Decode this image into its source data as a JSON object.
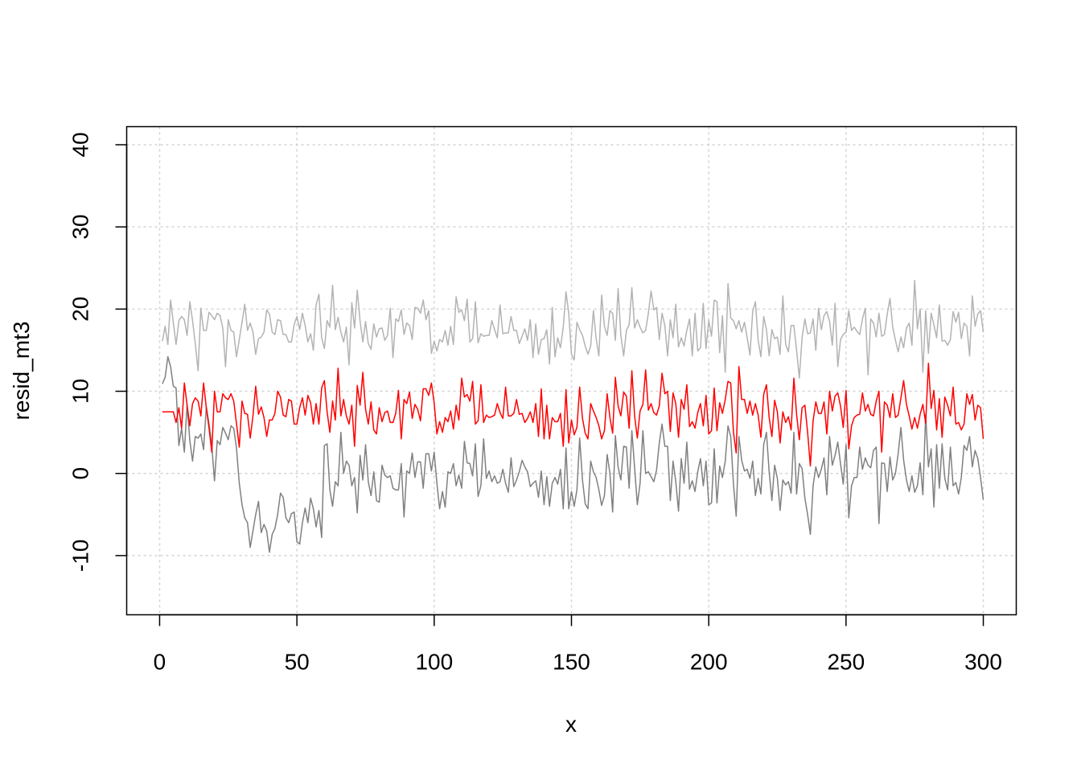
{
  "chart_data": {
    "type": "line",
    "title": "",
    "xlabel": "x",
    "ylabel": "resid_mt3",
    "xlim": [
      0,
      300
    ],
    "ylim": [
      -15,
      40
    ],
    "xticks": [
      0,
      50,
      100,
      150,
      200,
      250,
      300
    ],
    "yticks": [
      -10,
      0,
      10,
      20,
      30,
      40
    ],
    "grid": true,
    "legend": "none",
    "series": [
      {
        "color": "#b3b3b3",
        "values": [
          16.1,
          17.9,
          15.7,
          21.1,
          18.3,
          15.7,
          18.6,
          19.1,
          18.7,
          16.8,
          20.9,
          18.6,
          15.8,
          12.5,
          20.1,
          17.4,
          17.4,
          19.6,
          19.2,
          18.7,
          19.5,
          19.2,
          17.7,
          13,
          18.7,
          17.4,
          17.2,
          14.2,
          16.3,
          18.4,
          20.6,
          17.4,
          18.3,
          17.2,
          14.5,
          16.4,
          16.6,
          17.2,
          19.9,
          19.4,
          17.2,
          16.9,
          18.7,
          18.6,
          16.9,
          16.9,
          16,
          16,
          18.1,
          19.1,
          17.5,
          19.5,
          18,
          16,
          17,
          15,
          20.5,
          21.8,
          16.5,
          15.2,
          18.6,
          17.8,
          22.9,
          17.5,
          19,
          17.2,
          16,
          17.8,
          13.2,
          20.8,
          17.7,
          22.3,
          18.5,
          16,
          18.5,
          15.8,
          15.1,
          18.2,
          16.6,
          17.6,
          17.7,
          16.2,
          16.8,
          20.1,
          14.1,
          18.8,
          18.5,
          19.9,
          16.9,
          18.3,
          18,
          16.3,
          20.2,
          20.1,
          19.5,
          21.1,
          18.7,
          19.8,
          14.6,
          16.1,
          14.9,
          16.3,
          16,
          17.4,
          15.6,
          17.9,
          15.7,
          21.5,
          19.6,
          19.9,
          18.6,
          21.2,
          16,
          16.4,
          20.9,
          15.9,
          17,
          16.7,
          16.8,
          16.8,
          18.6,
          17.5,
          16.5,
          20.5,
          17,
          17.1,
          17.1,
          19.1,
          17.4,
          17.4,
          15.8,
          16.7,
          17.6,
          16.2,
          18.7,
          14.1,
          18.2,
          14.5,
          16.3,
          16.4,
          17.5,
          13.3,
          20.2,
          14.2,
          16.5,
          15.3,
          17.8,
          22.1,
          19.5,
          14.5,
          13.8,
          18.4,
          17.5,
          16.8,
          15.5,
          14.5,
          15.5,
          19.8,
          16.4,
          14.3,
          21.7,
          17.9,
          16.8,
          19.8,
          19.5,
          16.2,
          22.5,
          16.8,
          14.3,
          17.4,
          18.1,
          22.6,
          17.7,
          18.7,
          17.8,
          17.1,
          17.4,
          19.5,
          22.2,
          19.9,
          20.2,
          16.3,
          19.5,
          18,
          14.3,
          18.7,
          16.5,
          20.6,
          15.4,
          16.5,
          15.5,
          17.4,
          18.8,
          14.3,
          19.5,
          14.9,
          15.3,
          20.7,
          15.2,
          18.6,
          16.7,
          21.1,
          20.9,
          14.7,
          19.2,
          12.3,
          23.1,
          18.9,
          18.6,
          17.6,
          18.6,
          17.2,
          18.4,
          16.5,
          14.4,
          19.7,
          20.9,
          16.2,
          14.2,
          19.1,
          17.5,
          14.3,
          17.5,
          16.4,
          16.6,
          14.5,
          21.6,
          15.7,
          14.8,
          18,
          18,
          15,
          11.6,
          16.5,
          18.8,
          17,
          17.1,
          18.8,
          15,
          20.1,
          17.5,
          19.2,
          19.7,
          18.5,
          15.6,
          20.7,
          13,
          16.3,
          16.9,
          17.2,
          19.8,
          17.4,
          17.8,
          17.3,
          16.9,
          18.8,
          20.1,
          12,
          18.8,
          18.3,
          16.6,
          19.5,
          16.7,
          16.9,
          19.4,
          21.3,
          17.8,
          16.2,
          14.8,
          16.6,
          15.3,
          17.7,
          18.3,
          15.6,
          23.5,
          17.6,
          20,
          12.3,
          19.8,
          14.6,
          19.5,
          18.1,
          16.5,
          20.5,
          16.1,
          16.2,
          15.6,
          16.3,
          19.7,
          18.4,
          19.6,
          16.4,
          18.3,
          17.9,
          14.3,
          21.6,
          17.9,
          19.4,
          19.8,
          17.2
        ]
      },
      {
        "color": "#808080",
        "values": [
          10.9,
          11.7,
          14.2,
          13,
          10.6,
          10.4,
          3.4,
          5.5,
          2.6,
          8.4,
          4.0,
          1.5,
          4.5,
          4.3,
          4.8,
          2.9,
          8.1,
          6.0,
          3.4,
          -0.9,
          4.0,
          3.5,
          5.6,
          4.9,
          4.1,
          5.8,
          5.5,
          3.1,
          -1.2,
          -3.8,
          -5.4,
          -6.0,
          -9.0,
          -7.0,
          -5.0,
          -3.4,
          -7.2,
          -6.2,
          -7.0,
          -9.6,
          -7.4,
          -6.7,
          -5.0,
          -2.4,
          -2.9,
          -5.4,
          -6.0,
          -4.9,
          -4.7,
          -8.3,
          -8.6,
          -6,
          -4.2,
          -6,
          -3,
          -4.3,
          -6.5,
          -4.5,
          -7.8,
          3.4,
          3.6,
          -2,
          -4,
          -1,
          -1.5,
          5,
          0,
          1.5,
          1,
          -1.5,
          -0.5,
          -4.8,
          2.2,
          -0.8,
          3.5,
          -1,
          -2.7,
          0.2,
          -3.3,
          -3.5,
          1,
          -0.2,
          -0.5,
          -0.3,
          -1.8,
          -2,
          -2,
          1.2,
          -5.3,
          0.3,
          0,
          2.5,
          -0.5,
          1.4,
          1.4,
          -1.8,
          2.4,
          2.4,
          0.3,
          2.6,
          -1.2,
          -4.3,
          -2.2,
          -4.1,
          0.2,
          0,
          1.2,
          -1.5,
          -0.2,
          -1.8,
          3.9,
          1.3,
          1.2,
          -0.3,
          3.6,
          -2.8,
          -1.5,
          4.2,
          -0.6,
          0.3,
          -1,
          -0.3,
          -1.2,
          -1,
          0.5,
          -1.2,
          -2.3,
          1.9,
          -1.6,
          -0.8,
          0.2,
          1.6,
          0.8,
          0.2,
          -1.6,
          -1.2,
          -0.9,
          -2.9,
          0.3,
          -3.8,
          -0.4,
          -4,
          -1.2,
          -0.5,
          -1.3,
          0.5,
          -4.3,
          3.1,
          -4.3,
          -2.2,
          -4,
          -2,
          4.3,
          -0.8,
          -3.7,
          -4.3,
          1.5,
          0.2,
          -0.5,
          -2,
          -3.9,
          -2.7,
          2.3,
          0,
          -4.7,
          4.6,
          0.8,
          -0.8,
          3.3,
          3.2,
          -1.8,
          5.2,
          0.7,
          -3.8,
          -1.2,
          5.2,
          0,
          0.2,
          -0.4,
          -1,
          0.4,
          3.7,
          6,
          3.3,
          3.3,
          -3.3,
          1.5,
          -1,
          -4.6,
          1.8,
          -1.2,
          3.8,
          -1.9,
          -0.9,
          -2.2,
          0.2,
          1.8,
          -1.5,
          1.5,
          -3.8,
          -3.6,
          3,
          -3.6,
          0.9,
          -0.5,
          1.5,
          5.8,
          4.5,
          -1.3,
          -5.2,
          4.5,
          1.6,
          0.3,
          0.5,
          -0.6,
          1.5,
          -2.7,
          -0.6,
          -2.5,
          3.5,
          5,
          0.2,
          -3.3,
          1,
          -0.6,
          -4.5,
          -0.8,
          -1.4,
          -1,
          -2.4,
          5,
          -2.5,
          1.2,
          0.6,
          -3,
          -5,
          -7.4,
          -1.5,
          0.8,
          -0.5,
          0.5,
          1.9,
          -2.6,
          4.5,
          1,
          2.2,
          3.8,
          1.2,
          -1.3,
          3.5,
          -5.4,
          -1.5,
          -0.5,
          -0.5,
          3.2,
          0.5,
          1.9,
          1,
          0.7,
          2.8,
          3.2,
          -6.1,
          1.3,
          1.2,
          -2.2,
          2,
          -0.8,
          0,
          2.4,
          5.6,
          1.6,
          -0.8,
          -2.2,
          -0.3,
          -2.3,
          -1.5,
          1.3,
          -2.6,
          7.2,
          0.8,
          3,
          -4.1,
          3.5,
          -1.8,
          3.6,
          -0.6,
          -2,
          3.2,
          -1.5,
          -1.1,
          -2.5,
          -0.5,
          3.4,
          2.8,
          4.5,
          0.8,
          2.8,
          1.8,
          -0.5,
          -3.2
        ]
      },
      {
        "color": "#ff0000",
        "values": [
          7.5,
          7.5,
          7.5,
          7.5,
          7.5,
          6.2,
          8,
          5.5,
          11,
          8.3,
          5.8,
          8.5,
          9.2,
          8.8,
          7,
          11,
          8,
          5.5,
          2.6,
          10,
          7.5,
          7.5,
          9.7,
          9.2,
          9,
          9.7,
          8.8,
          6.1,
          3.2,
          8.8,
          7.3,
          7.2,
          4.3,
          7,
          10.6,
          7.2,
          8.1,
          6.8,
          4.5,
          6.5,
          6.5,
          7.3,
          10,
          9.3,
          7.1,
          6.9,
          9,
          8.8,
          6,
          6,
          8,
          9.2,
          7.1,
          9.5,
          8.6,
          6,
          8.5,
          6,
          10.4,
          11.3,
          7.5,
          5,
          8.8,
          6.5,
          12.8,
          7,
          9,
          7,
          6,
          8.3,
          3.3,
          10.7,
          8.3,
          12.3,
          7.8,
          6,
          8.7,
          5.3,
          4.8,
          8,
          6.3,
          7.4,
          7.6,
          6.2,
          6.2,
          7.3,
          10.1,
          4.2,
          9,
          8.5,
          9.9,
          6.7,
          8.4,
          7.8,
          6.4,
          10.3,
          10.3,
          9.5,
          11,
          8.6,
          4.8,
          6.3,
          5,
          6.8,
          6.3,
          7.6,
          5.4,
          8.3,
          6.5,
          11.6,
          9.3,
          9.6,
          8.8,
          11.2,
          6,
          6.4,
          10.8,
          6.2,
          7.1,
          6.8,
          6.9,
          7.1,
          8.5,
          7.4,
          6.7,
          10.5,
          7,
          7,
          7.3,
          9,
          7.2,
          7.3,
          6.2,
          6.7,
          7.5,
          6.2,
          8.5,
          4.5,
          10.3,
          4.2,
          8.3,
          4.2,
          6.8,
          6.3,
          6.3,
          7.3,
          3.3,
          10.2,
          3.7,
          6.5,
          4.7,
          5.6,
          10.5,
          6.7,
          4.9,
          4.2,
          8.5,
          7.6,
          6.8,
          5.8,
          4.2,
          5.2,
          9.7,
          6.8,
          4.9,
          11.7,
          8.2,
          7,
          9.9,
          9.4,
          5.5,
          12.5,
          7,
          4.3,
          7.6,
          8.4,
          12.6,
          7.7,
          8.5,
          7.4,
          7.1,
          8.2,
          12.2,
          9.7,
          10,
          5.1,
          9.8,
          8.5,
          4.4,
          9,
          7.8,
          10.8,
          5.7,
          6.3,
          5.5,
          7.4,
          8.5,
          5.8,
          9.5,
          4.8,
          5.2,
          10.4,
          5.2,
          8.6,
          7.3,
          9,
          11.2,
          11,
          5,
          2.5,
          13,
          9,
          9,
          7.3,
          8.8,
          7.1,
          8.5,
          7.1,
          4.4,
          9.6,
          10.8,
          6.8,
          4.5,
          8.9,
          7.5,
          3.7,
          7.5,
          6.2,
          6.9,
          5.3,
          11.6,
          7.2,
          4.1,
          8,
          8.3,
          5,
          0.9,
          6.4,
          8.7,
          7.3,
          7.3,
          8.7,
          4.8,
          10,
          7.6,
          9.4,
          9.8,
          8.2,
          5.6,
          10.1,
          3,
          5.8,
          6.8,
          7.1,
          7.2,
          9.8,
          7.6,
          8.4,
          7.2,
          7,
          8.8,
          10,
          2.6,
          8.7,
          8.3,
          6.8,
          9.7,
          6.8,
          7.1,
          9.2,
          11.3,
          8.4,
          7,
          5.4,
          6.8,
          5.5,
          7.2,
          8.4,
          6.1,
          13.4,
          7.9,
          10.1,
          5.3,
          9.1,
          4.4,
          9.3,
          8.3,
          7,
          10.5,
          6,
          6.2,
          5.3,
          6,
          9.7,
          8.4,
          9.6,
          6.5,
          8.3,
          8,
          4.2
        ]
      }
    ]
  }
}
